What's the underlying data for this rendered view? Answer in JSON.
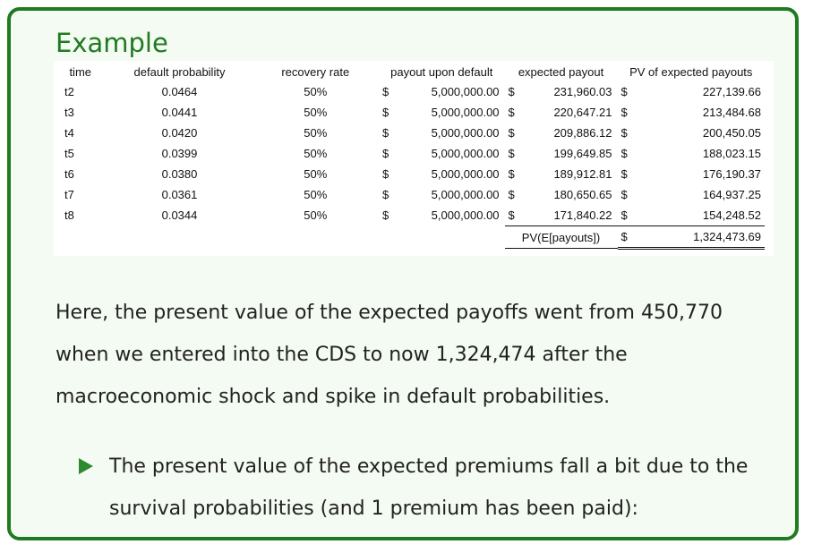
{
  "slide": {
    "title": "Example",
    "paragraph": "Here, the present value of the expected payoffs went from 450,770 when we entered into the CDS to now 1,324,474 after the macroeconomic shock and spike in default probabilities.",
    "bullet": "The present value of the expected premiums fall a bit due to the survival probabilities (and 1 premium has been paid):",
    "accent_color": "#1f7a22",
    "background_color": "#f4fbf2",
    "bullet_icon": "triangle-right-icon"
  },
  "table": {
    "headers": {
      "time": "time",
      "default_probability": "default probability",
      "recovery_rate": "recovery rate",
      "payout_upon_default": "payout upon default",
      "expected_payout": "expected payout",
      "pv_expected_payouts": "PV of expected payouts"
    },
    "rows": [
      {
        "time": "t2",
        "prob": "0.0464",
        "rate": "50%",
        "d1": "$",
        "payout": "5,000,000.00",
        "d2": "$",
        "expected": "231,960.03",
        "d3": "$",
        "pv": "227,139.66"
      },
      {
        "time": "t3",
        "prob": "0.0441",
        "rate": "50%",
        "d1": "$",
        "payout": "5,000,000.00",
        "d2": "$",
        "expected": "220,647.21",
        "d3": "$",
        "pv": "213,484.68"
      },
      {
        "time": "t4",
        "prob": "0.0420",
        "rate": "50%",
        "d1": "$",
        "payout": "5,000,000.00",
        "d2": "$",
        "expected": "209,886.12",
        "d3": "$",
        "pv": "200,450.05"
      },
      {
        "time": "t5",
        "prob": "0.0399",
        "rate": "50%",
        "d1": "$",
        "payout": "5,000,000.00",
        "d2": "$",
        "expected": "199,649.85",
        "d3": "$",
        "pv": "188,023.15"
      },
      {
        "time": "t6",
        "prob": "0.0380",
        "rate": "50%",
        "d1": "$",
        "payout": "5,000,000.00",
        "d2": "$",
        "expected": "189,912.81",
        "d3": "$",
        "pv": "176,190.37"
      },
      {
        "time": "t7",
        "prob": "0.0361",
        "rate": "50%",
        "d1": "$",
        "payout": "5,000,000.00",
        "d2": "$",
        "expected": "180,650.65",
        "d3": "$",
        "pv": "164,937.25"
      },
      {
        "time": "t8",
        "prob": "0.0344",
        "rate": "50%",
        "d1": "$",
        "payout": "5,000,000.00",
        "d2": "$",
        "expected": "171,840.22",
        "d3": "$",
        "pv": "154,248.52"
      }
    ],
    "total": {
      "label": "PV(E[payouts])",
      "d": "$",
      "value": "1,324,473.69"
    }
  }
}
